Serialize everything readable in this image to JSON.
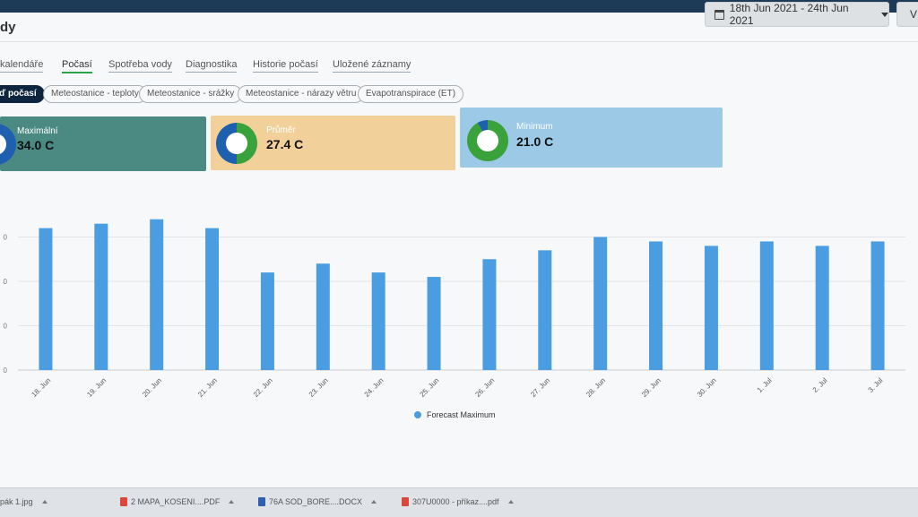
{
  "header": {
    "title": "dy",
    "date_range": "18th Jun 2021 - 24th Jun 2021",
    "extra_button": "V"
  },
  "tabs": [
    {
      "label": "kalendáře",
      "active": false
    },
    {
      "label": "Počasí",
      "active": true
    },
    {
      "label": "Spotřeba vody",
      "active": false
    },
    {
      "label": "Diagnostika",
      "active": false
    },
    {
      "label": "Historie počasí",
      "active": false
    },
    {
      "label": "Uložené záznamy",
      "active": false
    }
  ],
  "subtabs": [
    {
      "label": "ď počasí",
      "active": true
    },
    {
      "label": "Meteostanice - teploty",
      "active": false
    },
    {
      "label": "Meteostanice - srážky",
      "active": false
    },
    {
      "label": "Meteostanice - nárazy větru",
      "active": false
    },
    {
      "label": "Evapotranspirace (ET)",
      "active": false
    }
  ],
  "cards": [
    {
      "label": "Maximální",
      "value": "34.0 C",
      "color": "#4b8a83"
    },
    {
      "label": "Průměr",
      "value": "27.4 C",
      "color": "#f2d09a"
    },
    {
      "label": "Minimum",
      "value": "21.0 C",
      "color": "#9cc9e6"
    }
  ],
  "chart_data": {
    "type": "bar",
    "categories": [
      "18. Jun",
      "19. Jun",
      "20. Jun",
      "21. Jun",
      "22. Jun",
      "23. Jun",
      "24. Jun",
      "25. Jun",
      "26. Jun",
      "27. Jun",
      "28. Jun",
      "29. Jun",
      "30. Jun",
      "1. Jul",
      "2. Jul",
      "3. Jul"
    ],
    "series": [
      {
        "name": "Forecast Maximum",
        "values": [
          32,
          33,
          34,
          32,
          22,
          24,
          22,
          21,
          25,
          27,
          30,
          29,
          28,
          29,
          28,
          29
        ],
        "color": "#4a9de0"
      }
    ],
    "y_tick_labels": [
      "0",
      "0",
      "0",
      "0"
    ],
    "ylim": [
      0,
      40
    ],
    "grid": true,
    "legend": "bottom"
  },
  "taskbar": {
    "items": [
      {
        "label": "pák 1.jpg",
        "icon": "image-icon"
      },
      {
        "label": "2 MAPA_KOSENI....PDF",
        "icon": "pdf-icon"
      },
      {
        "label": "76A SOD_BORE....DOCX",
        "icon": "docx-icon"
      },
      {
        "label": "307U0000 - příkaz....pdf",
        "icon": "pdf-icon"
      }
    ]
  }
}
